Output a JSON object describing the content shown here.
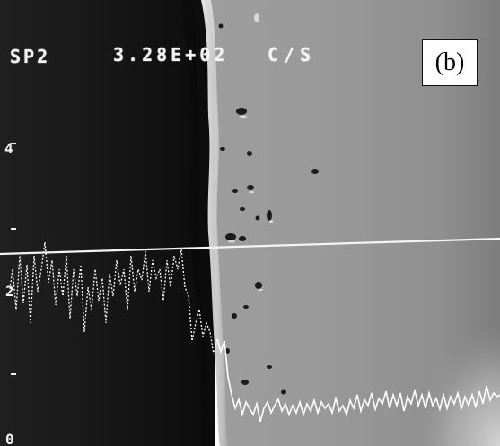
{
  "overlay": {
    "channel_label": "SP2",
    "count_rate": "3.28E+02",
    "count_unit": "C/S",
    "scale_ticks": [
      "4",
      "2",
      "0"
    ]
  },
  "panel": {
    "label": "(b)"
  },
  "colors": {
    "trace": "#ffffff",
    "gray_phase": "#9b9b9b",
    "dark_phase": "#141414",
    "background": "#ffffff"
  },
  "icons": {
    "panel_marker": "panel-label-box"
  }
}
